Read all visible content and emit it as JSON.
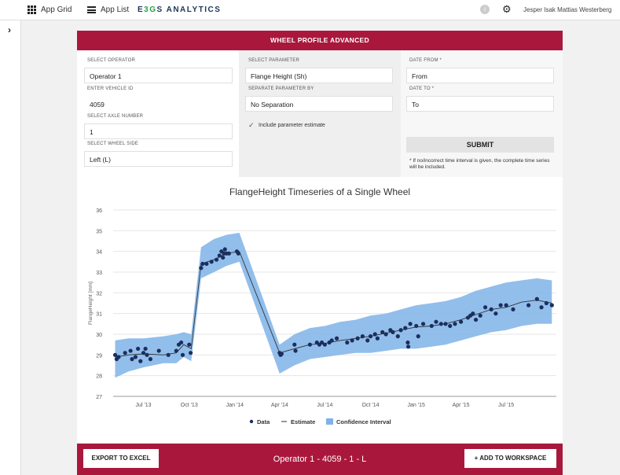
{
  "topbar": {
    "app_grid": "App Grid",
    "app_list": "App List",
    "logo_a": "E",
    "logo_b": "3G",
    "logo_c": "S ANALYTICS",
    "info": "i",
    "user": "Jesper Isak Mattias Westerberg"
  },
  "sidebar": {
    "toggle": "›"
  },
  "panel": {
    "title": "WHEEL PROFILE ADVANCED",
    "operator_label": "SELECT OPERATOR",
    "operator_value": "Operator 1",
    "vehicle_label": "ENTER VEHICLE ID",
    "vehicle_value": "4059",
    "axle_label": "SELECT AXLE NUMBER",
    "axle_value": "1",
    "side_label": "SELECT WHEEL SIDE",
    "side_value": "Left (L)",
    "parameter_label": "SELECT PARAMETER",
    "parameter_value": "Flange Height (Sh)",
    "separate_label": "SEPARATE PARAMETER BY",
    "separate_value": "No Separation",
    "include_label": "Include parameter estimate",
    "date_from_label": "DATE FROM *",
    "date_from_placeholder": "From",
    "date_to_label": "DATE TO *",
    "date_to_placeholder": "To",
    "submit": "SUBMIT",
    "note": "* If no/incorrect time interval is given, the complete time series will be included."
  },
  "footer": {
    "export": "EXPORT TO EXCEL",
    "title": "Operator 1 - 4059 - 1 - L",
    "workspace": "+ ADD TO WORKSPACE"
  },
  "chart_data": {
    "type": "line",
    "title": "FlangeHeight Timeseries of a Single Wheel",
    "xlabel": "",
    "ylabel": "FlangeHeight [mm]",
    "ylim": [
      27,
      36
    ],
    "yticks": [
      27,
      28,
      29,
      30,
      31,
      32,
      33,
      34,
      35,
      36
    ],
    "xlim": [
      "2013-05-01",
      "2015-10-10"
    ],
    "xticks": [
      {
        "date": "2013-07-01",
        "label": "Jul '13"
      },
      {
        "date": "2013-10-01",
        "label": "Oct '13"
      },
      {
        "date": "2014-01-01",
        "label": "Jan '14"
      },
      {
        "date": "2014-04-01",
        "label": "Apr '14"
      },
      {
        "date": "2014-07-01",
        "label": "Jul '14"
      },
      {
        "date": "2014-10-01",
        "label": "Oct '14"
      },
      {
        "date": "2015-01-01",
        "label": "Jan '15"
      },
      {
        "date": "2015-04-01",
        "label": "Apr '15"
      },
      {
        "date": "2015-07-01",
        "label": "Jul '15"
      }
    ],
    "legend": [
      "Data",
      "Estimate",
      "Confidence Interval"
    ],
    "legend_position": "bottom-center",
    "colors": {
      "data": "#1b2f5e",
      "estimate": "#333333",
      "confidence": "#7fb3e8"
    },
    "estimate": [
      {
        "x": "2013-05-05",
        "y": 28.9
      },
      {
        "x": "2013-06-01",
        "y": 29.0
      },
      {
        "x": "2013-07-01",
        "y": 29.05
      },
      {
        "x": "2013-08-10",
        "y": 29.0
      },
      {
        "x": "2013-09-05",
        "y": 29.1
      },
      {
        "x": "2013-09-20",
        "y": 29.5
      },
      {
        "x": "2013-10-05",
        "y": 29.3
      },
      {
        "x": "2013-10-25",
        "y": 33.4
      },
      {
        "x": "2013-11-20",
        "y": 33.6
      },
      {
        "x": "2013-12-15",
        "y": 33.9
      },
      {
        "x": "2014-01-10",
        "y": 34.0
      },
      {
        "x": "2014-04-01",
        "y": 29.1
      },
      {
        "x": "2014-05-01",
        "y": 29.3
      },
      {
        "x": "2014-06-01",
        "y": 29.5
      },
      {
        "x": "2014-07-01",
        "y": 29.55
      },
      {
        "x": "2014-08-01",
        "y": 29.7
      },
      {
        "x": "2014-09-01",
        "y": 29.8
      },
      {
        "x": "2014-10-01",
        "y": 29.9
      },
      {
        "x": "2014-11-01",
        "y": 30.05
      },
      {
        "x": "2014-12-01",
        "y": 30.2
      },
      {
        "x": "2015-01-01",
        "y": 30.35
      },
      {
        "x": "2015-02-01",
        "y": 30.4
      },
      {
        "x": "2015-03-01",
        "y": 30.5
      },
      {
        "x": "2015-04-01",
        "y": 30.7
      },
      {
        "x": "2015-05-01",
        "y": 30.95
      },
      {
        "x": "2015-06-01",
        "y": 31.2
      },
      {
        "x": "2015-07-01",
        "y": 31.3
      },
      {
        "x": "2015-08-01",
        "y": 31.55
      },
      {
        "x": "2015-09-01",
        "y": 31.65
      },
      {
        "x": "2015-10-01",
        "y": 31.5
      }
    ],
    "confidence_interval": [
      {
        "x": "2013-05-05",
        "low": 27.9,
        "high": 29.7
      },
      {
        "x": "2013-06-01",
        "low": 28.2,
        "high": 29.8
      },
      {
        "x": "2013-07-01",
        "low": 28.4,
        "high": 29.8
      },
      {
        "x": "2013-08-10",
        "low": 28.6,
        "high": 29.9
      },
      {
        "x": "2013-09-05",
        "low": 28.6,
        "high": 30.0
      },
      {
        "x": "2013-09-20",
        "low": 28.9,
        "high": 30.1
      },
      {
        "x": "2013-10-05",
        "low": 28.7,
        "high": 30.0
      },
      {
        "x": "2013-10-25",
        "low": 32.7,
        "high": 34.2
      },
      {
        "x": "2013-11-20",
        "low": 33.0,
        "high": 34.6
      },
      {
        "x": "2013-12-15",
        "low": 33.3,
        "high": 34.8
      },
      {
        "x": "2014-01-10",
        "low": 33.5,
        "high": 34.9
      },
      {
        "x": "2014-04-01",
        "low": 28.1,
        "high": 29.5
      },
      {
        "x": "2014-05-01",
        "low": 28.5,
        "high": 30.0
      },
      {
        "x": "2014-06-01",
        "low": 28.8,
        "high": 30.3
      },
      {
        "x": "2014-07-01",
        "low": 28.9,
        "high": 30.4
      },
      {
        "x": "2014-08-01",
        "low": 29.0,
        "high": 30.6
      },
      {
        "x": "2014-09-01",
        "low": 29.1,
        "high": 30.7
      },
      {
        "x": "2014-10-01",
        "low": 29.1,
        "high": 30.9
      },
      {
        "x": "2014-11-01",
        "low": 29.2,
        "high": 31.0
      },
      {
        "x": "2014-12-01",
        "low": 29.3,
        "high": 31.2
      },
      {
        "x": "2015-01-01",
        "low": 29.3,
        "high": 31.4
      },
      {
        "x": "2015-02-01",
        "low": 29.4,
        "high": 31.5
      },
      {
        "x": "2015-03-01",
        "low": 29.5,
        "high": 31.6
      },
      {
        "x": "2015-04-01",
        "low": 29.7,
        "high": 31.8
      },
      {
        "x": "2015-05-01",
        "low": 29.9,
        "high": 32.1
      },
      {
        "x": "2015-06-01",
        "low": 30.1,
        "high": 32.3
      },
      {
        "x": "2015-07-01",
        "low": 30.2,
        "high": 32.5
      },
      {
        "x": "2015-08-01",
        "low": 30.4,
        "high": 32.6
      },
      {
        "x": "2015-09-01",
        "low": 30.5,
        "high": 32.7
      },
      {
        "x": "2015-10-01",
        "low": 30.5,
        "high": 32.6
      }
    ],
    "data": [
      {
        "x": "2013-05-05",
        "y": 29.0
      },
      {
        "x": "2013-05-08",
        "y": 28.8
      },
      {
        "x": "2013-05-12",
        "y": 28.9
      },
      {
        "x": "2013-05-25",
        "y": 29.1
      },
      {
        "x": "2013-06-05",
        "y": 29.2
      },
      {
        "x": "2013-06-08",
        "y": 28.8
      },
      {
        "x": "2013-06-15",
        "y": 28.9
      },
      {
        "x": "2013-06-20",
        "y": 29.3
      },
      {
        "x": "2013-06-25",
        "y": 28.7
      },
      {
        "x": "2013-07-01",
        "y": 29.1
      },
      {
        "x": "2013-07-05",
        "y": 29.3
      },
      {
        "x": "2013-07-08",
        "y": 29.0
      },
      {
        "x": "2013-07-15",
        "y": 28.8
      },
      {
        "x": "2013-08-01",
        "y": 29.2
      },
      {
        "x": "2013-08-20",
        "y": 29.0
      },
      {
        "x": "2013-09-05",
        "y": 29.2
      },
      {
        "x": "2013-09-10",
        "y": 29.5
      },
      {
        "x": "2013-09-15",
        "y": 29.6
      },
      {
        "x": "2013-09-18",
        "y": 29.0
      },
      {
        "x": "2013-10-01",
        "y": 29.5
      },
      {
        "x": "2013-10-04",
        "y": 29.1
      },
      {
        "x": "2013-10-25",
        "y": 33.2
      },
      {
        "x": "2013-10-28",
        "y": 33.4
      },
      {
        "x": "2013-11-05",
        "y": 33.4
      },
      {
        "x": "2013-11-15",
        "y": 33.5
      },
      {
        "x": "2013-11-25",
        "y": 33.6
      },
      {
        "x": "2013-12-01",
        "y": 33.8
      },
      {
        "x": "2013-12-05",
        "y": 34.0
      },
      {
        "x": "2013-12-08",
        "y": 33.7
      },
      {
        "x": "2013-12-10",
        "y": 33.9
      },
      {
        "x": "2013-12-12",
        "y": 34.1
      },
      {
        "x": "2013-12-15",
        "y": 33.9
      },
      {
        "x": "2013-12-20",
        "y": 33.9
      },
      {
        "x": "2014-01-05",
        "y": 34.0
      },
      {
        "x": "2014-01-08",
        "y": 33.9
      },
      {
        "x": "2014-04-01",
        "y": 29.1
      },
      {
        "x": "2014-04-03",
        "y": 29.0
      },
      {
        "x": "2014-04-05",
        "y": 29.05
      },
      {
        "x": "2014-05-01",
        "y": 29.5
      },
      {
        "x": "2014-05-03",
        "y": 29.2
      },
      {
        "x": "2014-06-01",
        "y": 29.5
      },
      {
        "x": "2014-06-15",
        "y": 29.6
      },
      {
        "x": "2014-06-20",
        "y": 29.5
      },
      {
        "x": "2014-06-25",
        "y": 29.6
      },
      {
        "x": "2014-07-01",
        "y": 29.5
      },
      {
        "x": "2014-07-10",
        "y": 29.6
      },
      {
        "x": "2014-07-15",
        "y": 29.7
      },
      {
        "x": "2014-07-25",
        "y": 29.8
      },
      {
        "x": "2014-08-15",
        "y": 29.6
      },
      {
        "x": "2014-08-25",
        "y": 29.7
      },
      {
        "x": "2014-09-05",
        "y": 29.8
      },
      {
        "x": "2014-09-15",
        "y": 29.9
      },
      {
        "x": "2014-09-25",
        "y": 29.7
      },
      {
        "x": "2014-10-01",
        "y": 29.9
      },
      {
        "x": "2014-10-10",
        "y": 30.0
      },
      {
        "x": "2014-10-15",
        "y": 29.8
      },
      {
        "x": "2014-10-25",
        "y": 30.1
      },
      {
        "x": "2014-11-01",
        "y": 30.0
      },
      {
        "x": "2014-11-10",
        "y": 30.2
      },
      {
        "x": "2014-11-15",
        "y": 30.1
      },
      {
        "x": "2014-11-25",
        "y": 29.9
      },
      {
        "x": "2014-12-01",
        "y": 30.2
      },
      {
        "x": "2014-12-10",
        "y": 30.3
      },
      {
        "x": "2014-12-15",
        "y": 29.6
      },
      {
        "x": "2014-12-16",
        "y": 29.4
      },
      {
        "x": "2014-12-20",
        "y": 30.5
      },
      {
        "x": "2015-01-01",
        "y": 30.4
      },
      {
        "x": "2015-01-05",
        "y": 29.9
      },
      {
        "x": "2015-01-15",
        "y": 30.5
      },
      {
        "x": "2015-02-01",
        "y": 30.4
      },
      {
        "x": "2015-02-10",
        "y": 30.6
      },
      {
        "x": "2015-02-20",
        "y": 30.5
      },
      {
        "x": "2015-03-01",
        "y": 30.5
      },
      {
        "x": "2015-03-10",
        "y": 30.4
      },
      {
        "x": "2015-03-20",
        "y": 30.5
      },
      {
        "x": "2015-04-01",
        "y": 30.6
      },
      {
        "x": "2015-04-15",
        "y": 30.8
      },
      {
        "x": "2015-04-20",
        "y": 30.9
      },
      {
        "x": "2015-04-25",
        "y": 31.0
      },
      {
        "x": "2015-05-01",
        "y": 30.7
      },
      {
        "x": "2015-05-10",
        "y": 30.9
      },
      {
        "x": "2015-05-20",
        "y": 31.3
      },
      {
        "x": "2015-06-01",
        "y": 31.2
      },
      {
        "x": "2015-06-10",
        "y": 31.0
      },
      {
        "x": "2015-06-20",
        "y": 31.4
      },
      {
        "x": "2015-07-01",
        "y": 31.4
      },
      {
        "x": "2015-07-15",
        "y": 31.2
      },
      {
        "x": "2015-08-15",
        "y": 31.4
      },
      {
        "x": "2015-09-01",
        "y": 31.7
      },
      {
        "x": "2015-09-10",
        "y": 31.3
      },
      {
        "x": "2015-09-20",
        "y": 31.5
      },
      {
        "x": "2015-10-01",
        "y": 31.4
      }
    ]
  }
}
